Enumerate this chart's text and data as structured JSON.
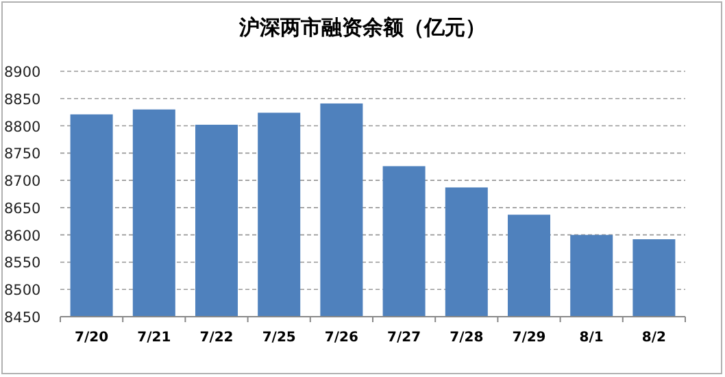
{
  "chart_data": {
    "type": "bar",
    "title": "沪深两市融资余额（亿元）",
    "categories": [
      "7/20",
      "7/21",
      "7/22",
      "7/25",
      "7/26",
      "7/27",
      "7/28",
      "7/29",
      "8/1",
      "8/2"
    ],
    "values": [
      8821,
      8830,
      8802,
      8824,
      8841,
      8726,
      8687,
      8637,
      8600,
      8592
    ],
    "color": "#4f81bd",
    "ylim": [
      8450,
      8900
    ],
    "yticks": [
      8450,
      8500,
      8550,
      8600,
      8650,
      8700,
      8750,
      8800,
      8850,
      8900
    ],
    "grid": "y"
  }
}
